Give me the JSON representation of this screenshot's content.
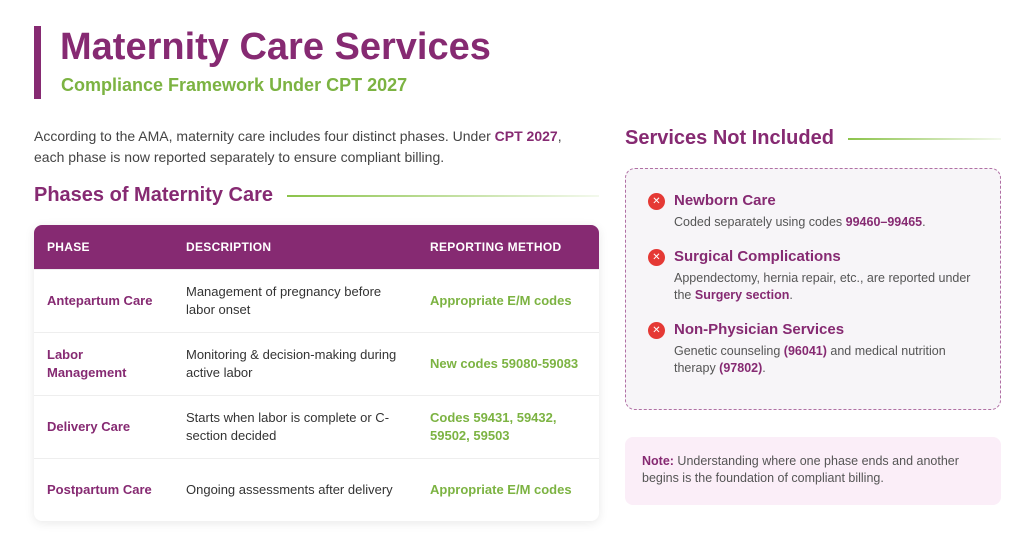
{
  "header": {
    "title": "Maternity Care Services",
    "subtitle": "Compliance Framework Under CPT 2027"
  },
  "intro": {
    "before": "According to the AMA, maternity care includes four distinct phases. Under ",
    "highlight": "CPT 2027",
    "after": ", each phase is now reported separately to ensure compliant billing."
  },
  "phases": {
    "heading": "Phases of Maternity Care",
    "table": {
      "columns": [
        "PHASE",
        "DESCRIPTION",
        "REPORTING METHOD"
      ],
      "rows": [
        [
          "Antepartum Care",
          "Management of pregnancy before labor onset",
          "Appropriate E/M codes"
        ],
        [
          "Labor Management",
          "Monitoring & decision-making during active labor",
          "New codes 59080-59083"
        ],
        [
          "Delivery Care",
          "Starts when labor is complete or C-section decided",
          "Codes 59431, 59432, 59502, 59503"
        ],
        [
          "Postpartum Care",
          "Ongoing assessments after delivery",
          "Appropriate E/M codes"
        ]
      ]
    }
  },
  "excluded": {
    "heading": "Services Not Included",
    "items": [
      {
        "title": "Newborn Care",
        "parts": [
          "Coded separately using codes ",
          "99460–99465",
          "."
        ]
      },
      {
        "title": "Surgical Complications",
        "parts": [
          "Appendectomy, hernia repair, etc., are reported under the ",
          "Surgery section",
          "."
        ]
      },
      {
        "title": "Non-Physician Services",
        "parts": [
          "Genetic counseling ",
          "(96041)",
          " and medical nutrition therapy ",
          "(97802)",
          "."
        ]
      }
    ]
  },
  "note": {
    "label": "Note:",
    "text": " Understanding where one phase ends and another begins is the foundation of compliant billing."
  }
}
